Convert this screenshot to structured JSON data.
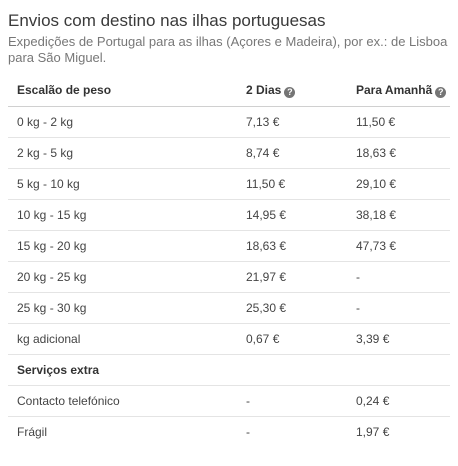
{
  "header": {
    "title": "Envios com destino nas ilhas portuguesas",
    "subtitle": "Expedições de Portugal para as ilhas (Açores e Madeira), por ex.: de Lisboa para São Miguel."
  },
  "table": {
    "columns": {
      "weight": "Escalão de peso",
      "two_days": "2 Dias",
      "tomorrow": "Para Amanhã"
    },
    "help_icon": "help-circle-icon",
    "rows": [
      {
        "weight": "0 kg - 2 kg",
        "two_days": "7,13 €",
        "tomorrow": "11,50 €"
      },
      {
        "weight": "2 kg - 5 kg",
        "two_days": "8,74 €",
        "tomorrow": "18,63 €"
      },
      {
        "weight": "5 kg - 10 kg",
        "two_days": "11,50 €",
        "tomorrow": "29,10 €"
      },
      {
        "weight": "10 kg - 15 kg",
        "two_days": "14,95 €",
        "tomorrow": "38,18 €"
      },
      {
        "weight": "15 kg - 20 kg",
        "two_days": "18,63 €",
        "tomorrow": "47,73 €"
      },
      {
        "weight": "20 kg - 25 kg",
        "two_days": "21,97 €",
        "tomorrow": "-"
      },
      {
        "weight": "25 kg - 30 kg",
        "two_days": "25,30 €",
        "tomorrow": "-"
      },
      {
        "weight": "kg adicional",
        "two_days": "0,67 €",
        "tomorrow": "3,39 €"
      }
    ],
    "extras_heading": "Serviços extra",
    "extras": [
      {
        "service": "Contacto telefónico",
        "two_days": "-",
        "tomorrow": "0,24 €"
      },
      {
        "service": "Frágil",
        "two_days": "-",
        "tomorrow": "1,97 €"
      }
    ]
  }
}
